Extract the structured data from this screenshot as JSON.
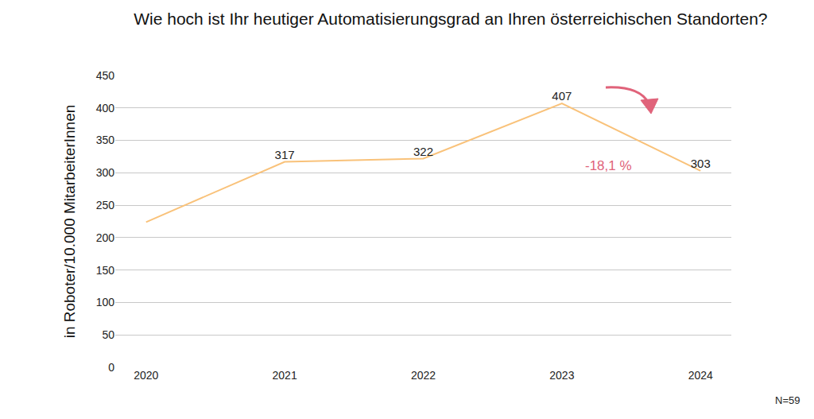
{
  "chart_data": {
    "type": "line",
    "title": "Wie hoch ist Ihr heutiger Automatisierungsgrad an Ihren österreichischen Standorten?",
    "y_label": "in Roboter/10.000 MitarbeiterInnen",
    "categories": [
      "2020",
      "2021",
      "2022",
      "2023",
      "2024"
    ],
    "values": [
      224,
      317,
      322,
      407,
      303
    ],
    "value_labels": [
      null,
      "317",
      "322",
      "407",
      "303"
    ],
    "data_labels": true,
    "color": "#f9c27a",
    "ylim": [
      0,
      450
    ],
    "yticks": [
      0,
      50,
      100,
      150,
      200,
      250,
      300,
      350,
      400,
      450
    ],
    "grid": true,
    "annotations": [
      {
        "text": "-18,1 %",
        "color": "#e0637a"
      }
    ],
    "note": "N=59"
  }
}
